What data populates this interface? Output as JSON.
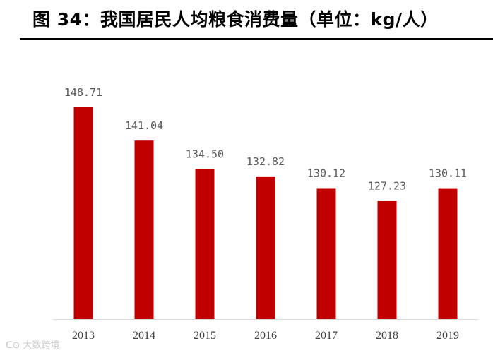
{
  "header": {
    "title": "图 34：我国居民人均粮食消费量（单位：kg/人）"
  },
  "colors": {
    "bar": "#c00000",
    "axis": "#d9d9d9",
    "value_label": "#595959",
    "tick_label": "#404040"
  },
  "chart_data": {
    "type": "bar",
    "title": "",
    "xlabel": "",
    "ylabel": "",
    "categories": [
      "2013",
      "2014",
      "2015",
      "2016",
      "2017",
      "2018",
      "2019"
    ],
    "values": [
      148.71,
      141.04,
      134.5,
      132.82,
      130.12,
      127.23,
      130.11
    ],
    "value_labels": [
      "148.71",
      "141.04",
      "134.50",
      "132.82",
      "130.12",
      "127.23",
      "130.11"
    ],
    "ylim": [
      100,
      155
    ],
    "grid": false,
    "legend": "none"
  },
  "watermark": {
    "text": "大数跨境"
  }
}
